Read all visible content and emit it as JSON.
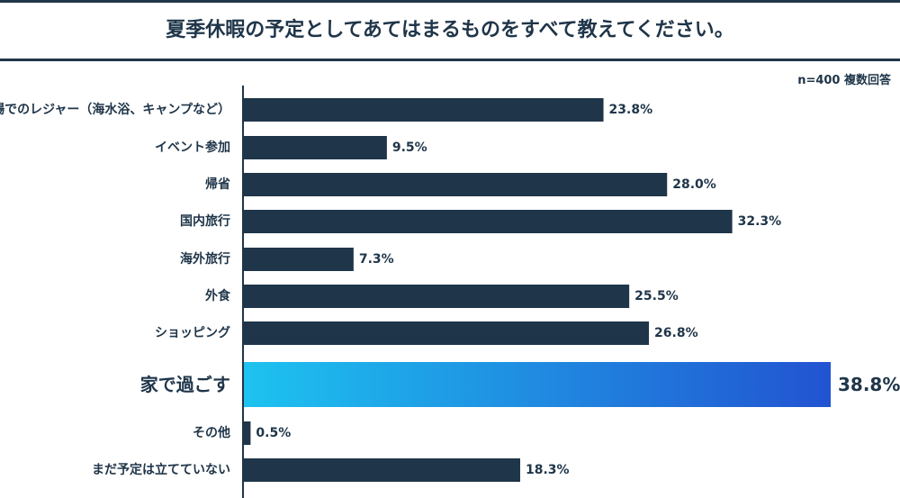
{
  "header": {
    "title": "夏季休暇の予定としてあてはまるものをすべて教えてください。",
    "note": "n=400 複数回答"
  },
  "colors": {
    "bar": "#1f3549",
    "highlight_start": "#1dc3f0",
    "highlight_end": "#2253d1",
    "text": "#1f3549",
    "axis": "#1f3549"
  },
  "chart_data": {
    "type": "bar",
    "orientation": "horizontal",
    "categories": [
      "近場でのレジャー（海水浴、キャンプなど）",
      "イベント参加",
      "帰省",
      "国内旅行",
      "海外旅行",
      "外食",
      "ショッピング",
      "家で過ごす",
      "その他",
      "まだ予定は立てていない"
    ],
    "values": [
      23.8,
      9.5,
      28.0,
      32.3,
      7.3,
      25.5,
      26.8,
      38.8,
      0.5,
      18.3
    ],
    "value_labels": [
      "23.8%",
      "9.5%",
      "28.0%",
      "32.3%",
      "7.3%",
      "25.5%",
      "26.8%",
      "38.8%",
      "0.5%",
      "18.3%"
    ],
    "highlight_index": 7,
    "xlim": [
      0,
      38.8
    ],
    "grid": false,
    "legend": "none"
  }
}
